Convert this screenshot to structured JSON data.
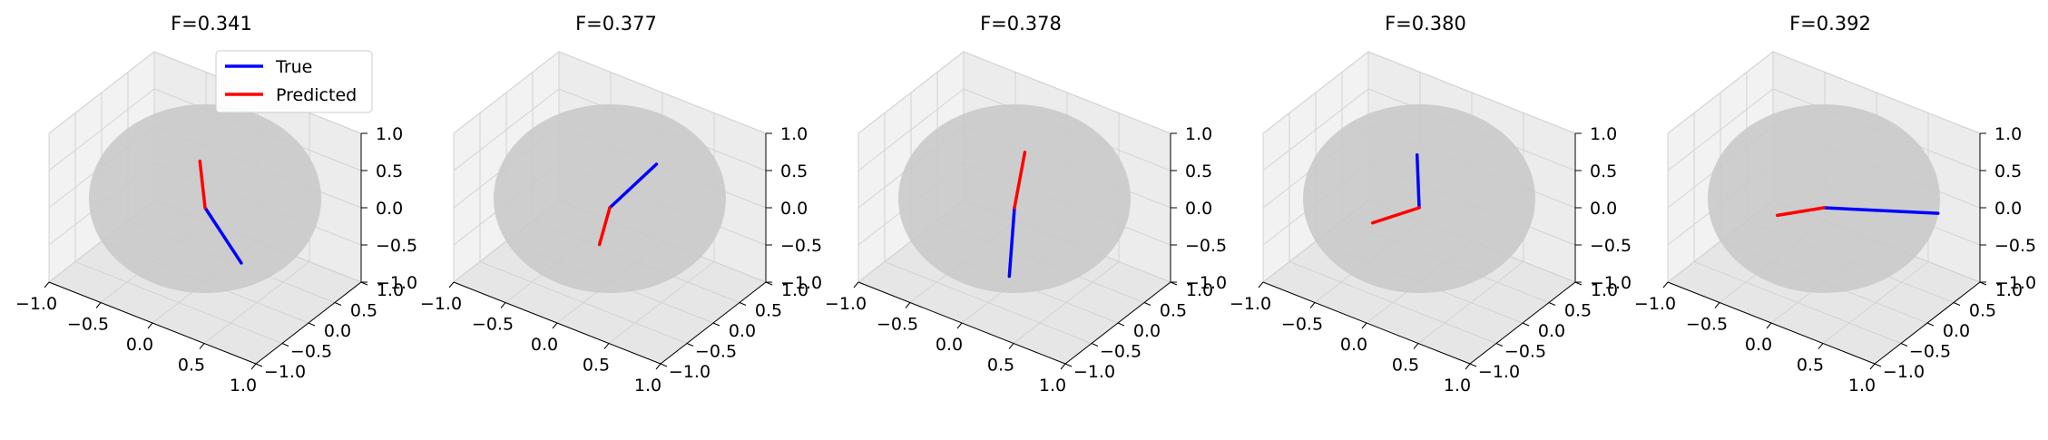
{
  "figure": {
    "legend": {
      "placement": "upper-left of first panel",
      "entries": [
        "True",
        "Predicted"
      ]
    }
  },
  "colors": {
    "true": "#0000ff",
    "predicted": "#ff0000",
    "sphere": "#c8c8c8",
    "pane": "#f2f2f2",
    "grid": "#d3d3d3"
  },
  "chart_data": [
    {
      "type": "line3d",
      "title": "F=0.341",
      "xlim": [
        -1,
        1
      ],
      "ylim": [
        -1,
        1
      ],
      "zlim": [
        -1,
        1
      ],
      "xticks": [
        "−1.0",
        "−0.5",
        "0.0",
        "0.5",
        "1.0"
      ],
      "yticks": [
        "−1.0",
        "−0.5",
        "0.0",
        "0.5",
        "1.0"
      ],
      "zticks": [
        "−1.0",
        "−0.5",
        "0.0",
        "0.5",
        "1.0"
      ],
      "grid": true,
      "series": [
        {
          "name": "True",
          "points": [
            [
              0,
              0,
              0
            ],
            [
              0.35,
              0.0,
              -0.55
            ]
          ]
        },
        {
          "name": "Predicted",
          "points": [
            [
              0,
              0,
              0
            ],
            [
              -0.05,
              0.0,
              0.6
            ]
          ]
        }
      ]
    },
    {
      "type": "line3d",
      "title": "F=0.377",
      "xlim": [
        -1,
        1
      ],
      "ylim": [
        -1,
        1
      ],
      "zlim": [
        -1,
        1
      ],
      "xticks": [
        "−1.0",
        "−0.5",
        "0.0",
        "0.5",
        "1.0"
      ],
      "yticks": [
        "−1.0",
        "−0.5",
        "0.0",
        "0.5",
        "1.0"
      ],
      "zticks": [
        "−1.0",
        "−0.5",
        "0.0",
        "0.5",
        "1.0"
      ],
      "grid": true,
      "series": [
        {
          "name": "True",
          "points": [
            [
              0,
              0,
              0
            ],
            [
              0.4,
              0.1,
              0.75
            ]
          ]
        },
        {
          "name": "Predicted",
          "points": [
            [
              0,
              0,
              0
            ],
            [
              -0.1,
              0.0,
              -0.55
            ]
          ]
        }
      ]
    },
    {
      "type": "line3d",
      "title": "F=0.378",
      "xlim": [
        -1,
        1
      ],
      "ylim": [
        -1,
        1
      ],
      "zlim": [
        -1,
        1
      ],
      "xticks": [
        "−1.0",
        "−0.5",
        "0.0",
        "0.5",
        "1.0"
      ],
      "yticks": [
        "−1.0",
        "−0.5",
        "0.0",
        "0.5",
        "1.0"
      ],
      "zticks": [
        "−1.0",
        "−0.5",
        "0.0",
        "0.5",
        "1.0"
      ],
      "grid": true,
      "series": [
        {
          "name": "True",
          "points": [
            [
              0,
              0,
              0
            ],
            [
              -0.05,
              0.0,
              -0.95
            ]
          ]
        },
        {
          "name": "Predicted",
          "points": [
            [
              0,
              0,
              0
            ],
            [
              0.1,
              0.0,
              0.8
            ]
          ]
        }
      ]
    },
    {
      "type": "line3d",
      "title": "F=0.380",
      "xlim": [
        -1,
        1
      ],
      "ylim": [
        -1,
        1
      ],
      "zlim": [
        -1,
        1
      ],
      "xticks": [
        "−1.0",
        "−0.5",
        "0.0",
        "0.5",
        "1.0"
      ],
      "yticks": [
        "−1.0",
        "−0.5",
        "0.0",
        "0.5",
        "1.0"
      ],
      "zticks": [
        "−1.0",
        "−0.5",
        "0.0",
        "0.5",
        "1.0"
      ],
      "grid": true,
      "series": [
        {
          "name": "True",
          "points": [
            [
              0,
              0,
              0
            ],
            [
              -0.02,
              0.0,
              0.7
            ]
          ]
        },
        {
          "name": "Predicted",
          "points": [
            [
              0,
              0,
              0
            ],
            [
              -0.45,
              0.0,
              -0.45
            ]
          ]
        }
      ]
    },
    {
      "type": "line3d",
      "title": "F=0.392",
      "xlim": [
        -1,
        1
      ],
      "ylim": [
        -1,
        1
      ],
      "zlim": [
        -1,
        1
      ],
      "xticks": [
        "−1.0",
        "−0.5",
        "0.0",
        "0.5",
        "1.0"
      ],
      "yticks": [
        "−1.0",
        "−0.5",
        "0.0",
        "0.5",
        "1.0"
      ],
      "zticks": [
        "−1.0",
        "−0.5",
        "0.0",
        "0.5",
        "1.0"
      ],
      "grid": true,
      "series": [
        {
          "name": "True",
          "points": [
            [
              0,
              0,
              0
            ],
            [
              0.9,
              0.4,
              0.2
            ]
          ]
        },
        {
          "name": "Predicted",
          "points": [
            [
              0,
              0,
              0
            ],
            [
              -0.45,
              0.0,
              -0.35
            ]
          ]
        }
      ]
    }
  ]
}
